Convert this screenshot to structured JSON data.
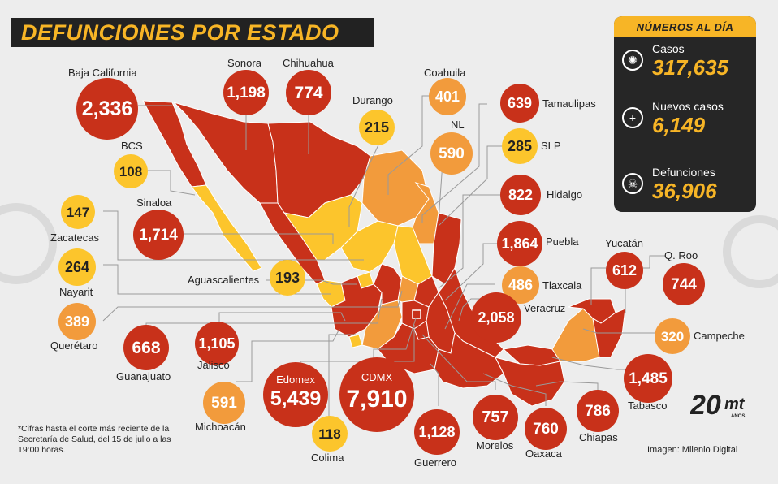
{
  "title": "DEFUNCIONES POR ESTADO",
  "stats": {
    "header": "NÚMEROS AL DÍA",
    "items": [
      {
        "label": "Casos",
        "value": "317,635",
        "icon": "virus-icon"
      },
      {
        "label": "Nuevos casos",
        "value": "6,149",
        "icon": "plus-icon"
      },
      {
        "label": "Defunciones",
        "value": "36,906",
        "icon": "skull-icon"
      }
    ]
  },
  "colors": {
    "red": "#c8311a",
    "orange": "#f29b3c",
    "yellow": "#fcc52c",
    "accent": "#f7b526"
  },
  "states": {
    "baja_california": {
      "name": "Baja California",
      "value": "2,336"
    },
    "sonora": {
      "name": "Sonora",
      "value": "1,198"
    },
    "chihuahua": {
      "name": "Chihuahua",
      "value": "774"
    },
    "durango": {
      "name": "Durango",
      "value": "215"
    },
    "coahuila": {
      "name": "Coahuila",
      "value": "401"
    },
    "tamaulipas": {
      "name": "Tamaulipas",
      "value": "639"
    },
    "nl": {
      "name": "NL",
      "value": "590"
    },
    "slp": {
      "name": "SLP",
      "value": "285"
    },
    "bcs": {
      "name": "BCS",
      "value": "108"
    },
    "hidalgo": {
      "name": "Hidalgo",
      "value": "822"
    },
    "zacatecas": {
      "name": "Zacatecas",
      "value": "147"
    },
    "sinaloa": {
      "name": "Sinaloa",
      "value": "1,714"
    },
    "puebla": {
      "name": "Puebla",
      "value": "1,864"
    },
    "nayarit": {
      "name": "Nayarit",
      "value": "264"
    },
    "aguascalientes": {
      "name": "Aguascalientes",
      "value": "193"
    },
    "tlaxcala": {
      "name": "Tlaxcala",
      "value": "486"
    },
    "yucatan": {
      "name": "Yucatán",
      "value": "612"
    },
    "qroo": {
      "name": "Q. Roo",
      "value": "744"
    },
    "queretaro": {
      "name": "Querétaro",
      "value": "389"
    },
    "veracruz": {
      "name": "Veracruz",
      "value": "2,058"
    },
    "campeche": {
      "name": "Campeche",
      "value": "320"
    },
    "guanajuato": {
      "name": "Guanajuato",
      "value": "668"
    },
    "jalisco": {
      "name": "Jalisco",
      "value": "1,105"
    },
    "edomex": {
      "name": "Edomex",
      "value": "5,439"
    },
    "cdmx": {
      "name": "CDMX",
      "value": "7,910"
    },
    "tabasco": {
      "name": "Tabasco",
      "value": "1,485"
    },
    "michoacan": {
      "name": "Michoacán",
      "value": "591"
    },
    "colima": {
      "name": "Colima",
      "value": "118"
    },
    "guerrero": {
      "name": "Guerrero",
      "value": "1,128"
    },
    "morelos": {
      "name": "Morelos",
      "value": "757"
    },
    "oaxaca": {
      "name": "Oaxaca",
      "value": "760"
    },
    "chiapas": {
      "name": "Chiapas",
      "value": "786"
    }
  },
  "footnote": "*Cifras hasta el corte más reciente de la Secretaría de Salud, del 15 de julio a las 19:00 horas.",
  "credit": "Imagen: Milenio Digital",
  "logo": {
    "number": "20",
    "brand": "mt",
    "sub": "AÑOS"
  }
}
